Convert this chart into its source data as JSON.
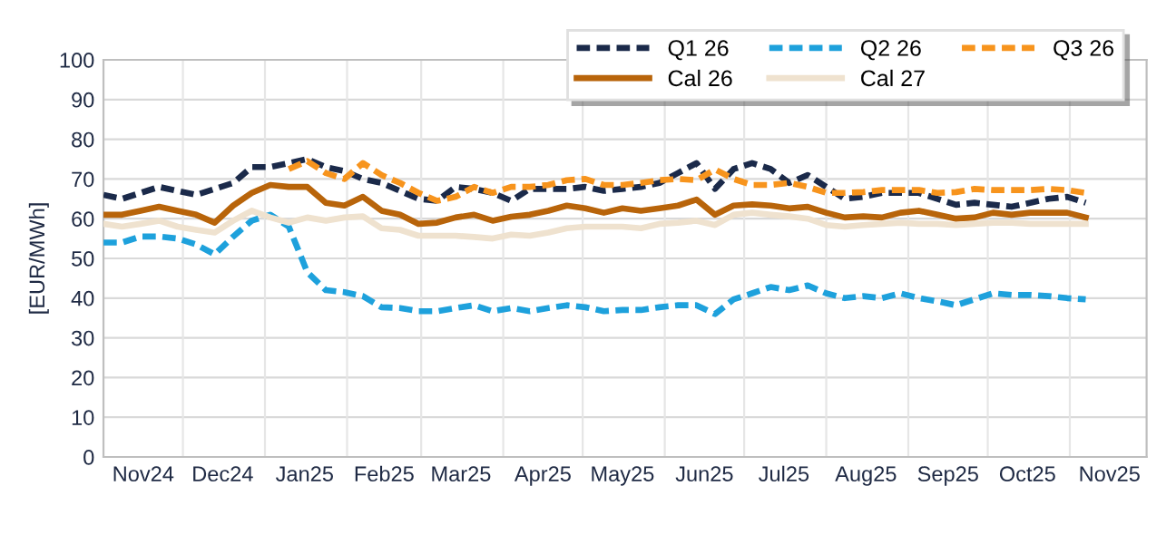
{
  "chart_data": {
    "type": "line",
    "ylabel": "[EUR/MWh]",
    "x": [
      "2024-11-01",
      "2024-11-08",
      "2024-11-15",
      "2024-11-22",
      "2024-11-29",
      "2024-12-06",
      "2024-12-13",
      "2024-12-20",
      "2024-12-27",
      "2025-01-03",
      "2025-01-10",
      "2025-01-17",
      "2025-01-24",
      "2025-01-31",
      "2025-02-07",
      "2025-02-14",
      "2025-02-21",
      "2025-02-28",
      "2025-03-07",
      "2025-03-14",
      "2025-03-21",
      "2025-03-28",
      "2025-04-04",
      "2025-04-11",
      "2025-04-18",
      "2025-04-25",
      "2025-05-02",
      "2025-05-09",
      "2025-05-16",
      "2025-05-23",
      "2025-05-30",
      "2025-06-06",
      "2025-06-13",
      "2025-06-20",
      "2025-06-27",
      "2025-07-04",
      "2025-07-11",
      "2025-07-18",
      "2025-07-25",
      "2025-08-01",
      "2025-08-08",
      "2025-08-15",
      "2025-08-22",
      "2025-08-29",
      "2025-09-05",
      "2025-09-12",
      "2025-09-19",
      "2025-09-26",
      "2025-10-03",
      "2025-10-10",
      "2025-10-17",
      "2025-10-24",
      "2025-10-31",
      "2025-11-07"
    ],
    "series": [
      {
        "name": "Q1 26",
        "color": "#1b2a4a",
        "line_style": "dashed",
        "values": [
          66,
          65,
          66.5,
          68,
          67,
          66,
          67.5,
          69,
          73,
          73,
          74,
          75,
          73,
          72,
          70,
          69,
          67,
          65,
          64.5,
          68,
          67.5,
          66.5,
          64.5,
          67.5,
          67.5,
          67.5,
          68,
          67,
          67.5,
          68,
          69,
          71.5,
          74,
          67.5,
          72.5,
          74,
          72.5,
          69,
          71,
          68,
          65,
          65.5,
          66.5,
          66.5,
          66.5,
          65,
          63.5,
          64,
          63.5,
          63,
          64,
          65,
          65.5,
          64
        ]
      },
      {
        "name": "Q2 26",
        "color": "#1ea1dc",
        "line_style": "dashed",
        "values": [
          54,
          54,
          55.5,
          55.5,
          55,
          53.5,
          51,
          55.5,
          59.5,
          61,
          58,
          46.5,
          42,
          41.5,
          40.5,
          37.7,
          37.5,
          36.7,
          36.7,
          37.5,
          38.2,
          36.7,
          37.5,
          36.7,
          37.5,
          38.2,
          37.7,
          36.7,
          37,
          37,
          37.7,
          38.2,
          38.2,
          36,
          39.7,
          41.2,
          42.8,
          42,
          43.2,
          41.2,
          40,
          40.5,
          40,
          41.2,
          40,
          39.2,
          38.2,
          39.7,
          41.2,
          40.8,
          40.8,
          40.5,
          40,
          39.7
        ]
      },
      {
        "name": "Q3 26",
        "color": "#f7941d",
        "line_style": "dashed",
        "values": [
          null,
          null,
          null,
          null,
          null,
          null,
          null,
          null,
          null,
          null,
          72.5,
          74.5,
          71.5,
          70,
          74,
          71,
          69,
          66.5,
          64.5,
          65.5,
          68,
          66.5,
          68,
          68,
          68.5,
          69.7,
          70,
          68.5,
          68.5,
          69,
          69.7,
          70,
          69.7,
          72.4,
          70,
          68.5,
          68.5,
          69,
          68,
          66.5,
          66.5,
          66.7,
          67.2,
          67.2,
          67.2,
          66.5,
          66.7,
          67.5,
          67.2,
          67.2,
          67.2,
          67.5,
          67.2,
          66.5
        ]
      },
      {
        "name": "Cal 26",
        "color": "#b8640a",
        "line_style": "solid",
        "values": [
          61,
          61,
          62,
          63,
          62,
          61,
          59,
          63.3,
          66.5,
          68.5,
          68,
          68,
          64,
          63.3,
          65.5,
          62,
          61,
          58.7,
          59,
          60.3,
          61,
          59.5,
          60.5,
          61,
          62,
          63.3,
          62.6,
          61.5,
          62.6,
          62,
          62.6,
          63.3,
          64.8,
          61,
          63.3,
          63.6,
          63.3,
          62.6,
          63,
          61.5,
          60.3,
          60.6,
          60.3,
          61.5,
          62,
          61,
          60,
          60.3,
          61.5,
          61,
          61.5,
          61.5,
          61.5,
          60.3
        ]
      },
      {
        "name": "Cal 27",
        "color": "#efe2cf",
        "line_style": "solid",
        "values": [
          58.7,
          58,
          58.7,
          59.5,
          58,
          57.2,
          56.5,
          59.5,
          62,
          60.3,
          59,
          60.3,
          59.5,
          60.3,
          60.6,
          57.6,
          57.2,
          55.7,
          55.7,
          55.7,
          55.4,
          55,
          56,
          55.7,
          56.5,
          57.6,
          58,
          58,
          58,
          57.6,
          58.7,
          59,
          59.5,
          58.4,
          61,
          61.5,
          61,
          60.6,
          60,
          58.4,
          58,
          58.4,
          58.7,
          59,
          58.7,
          58.7,
          58.4,
          58.7,
          59,
          59,
          58.7,
          58.7,
          58.7,
          58.7
        ]
      }
    ],
    "xlim": [
      "2024-11-01",
      "2025-11-30"
    ],
    "xticks": [
      {
        "value": "2024-11-16",
        "label": "Nov24"
      },
      {
        "value": "2024-12-16",
        "label": "Dec24"
      },
      {
        "value": "2025-01-16",
        "label": "Jan25"
      },
      {
        "value": "2025-02-15",
        "label": "Feb25"
      },
      {
        "value": "2025-03-16",
        "label": "Mar25"
      },
      {
        "value": "2025-04-16",
        "label": "Apr25"
      },
      {
        "value": "2025-05-16",
        "label": "May25"
      },
      {
        "value": "2025-06-16",
        "label": "Jun25"
      },
      {
        "value": "2025-07-16",
        "label": "Jul25"
      },
      {
        "value": "2025-08-16",
        "label": "Aug25"
      },
      {
        "value": "2025-09-16",
        "label": "Sep25"
      },
      {
        "value": "2025-10-16",
        "label": "Oct25"
      },
      {
        "value": "2025-11-16",
        "label": "Nov25"
      },
      {
        "value": "2024-12-01",
        "label": null
      },
      {
        "value": "2025-01-01",
        "label": null
      },
      {
        "value": "2025-02-01",
        "label": null
      },
      {
        "value": "2025-03-01",
        "label": null
      },
      {
        "value": "2025-04-01",
        "label": null
      },
      {
        "value": "2025-05-01",
        "label": null
      },
      {
        "value": "2025-06-01",
        "label": null
      },
      {
        "value": "2025-07-01",
        "label": null
      },
      {
        "value": "2025-08-01",
        "label": null
      },
      {
        "value": "2025-09-01",
        "label": null
      },
      {
        "value": "2025-10-01",
        "label": null
      },
      {
        "value": "2025-11-01",
        "label": null
      }
    ],
    "ylim": [
      0,
      100
    ],
    "yticks": [
      0,
      10,
      20,
      30,
      40,
      50,
      60,
      70,
      80,
      90,
      100
    ],
    "grid": true,
    "legend": "top right",
    "marker": "none"
  }
}
